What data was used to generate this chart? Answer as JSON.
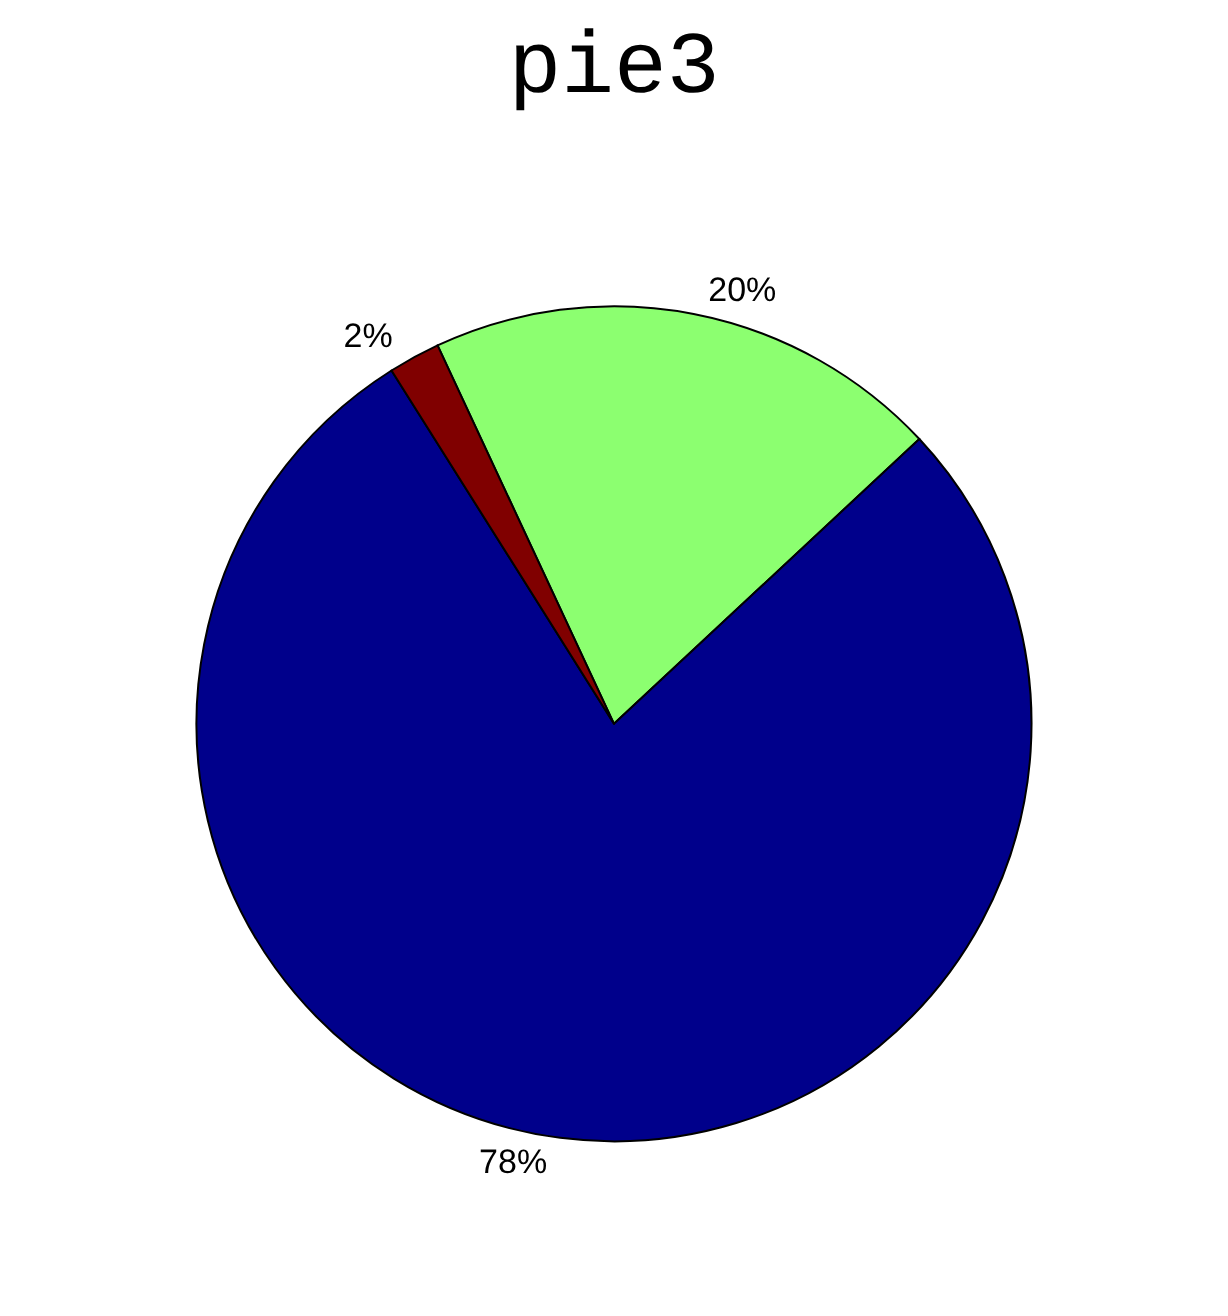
{
  "chart_data": {
    "type": "pie",
    "title": "pie3",
    "categories": [
      null,
      null,
      null
    ],
    "values": [
      20,
      78,
      2
    ],
    "colors": [
      "#8cff70",
      "#00008b",
      "#800000"
    ],
    "value_labels": [
      "20%",
      "78%",
      "2%"
    ]
  }
}
